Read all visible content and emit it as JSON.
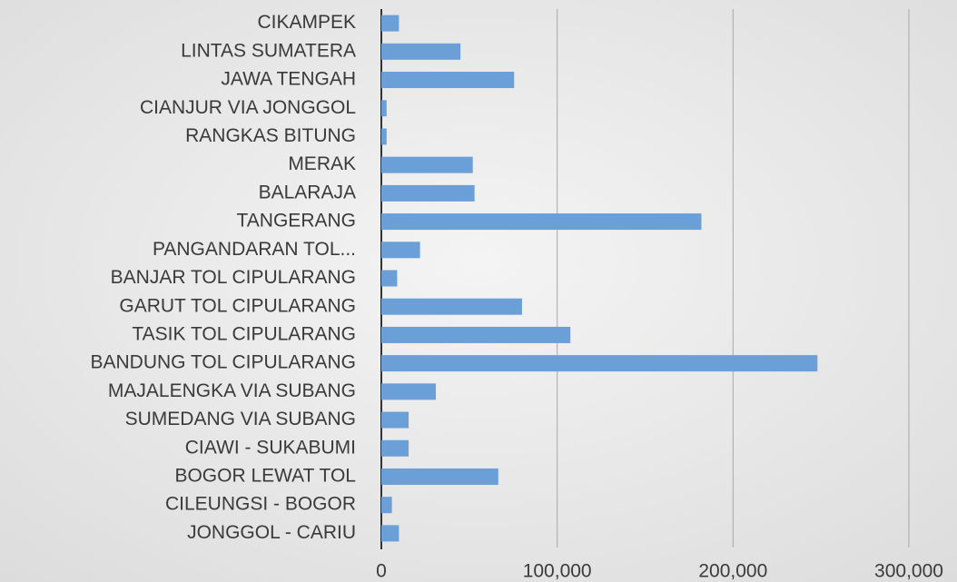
{
  "chart_data": {
    "type": "barh",
    "categories": [
      "CIKAMPEK",
      "LINTAS SUMATERA",
      "JAWA TENGAH",
      "CIANJUR VIA JONGGOL",
      "RANGKAS BITUNG",
      "MERAK",
      "BALARAJA",
      "TANGERANG",
      "PANGANDARAN TOL...",
      "BANJAR TOL CIPULARANG",
      "GARUT TOL CIPULARANG",
      "TASIK TOL CIPULARANG",
      "BANDUNG TOL CIPULARANG",
      "MAJALENGKA VIA SUBANG",
      "SUMEDANG VIA SUBANG",
      "CIAWI - SUKABUMI",
      "BOGOR LEWAT TOL",
      "CILEUNGSI - BOGOR",
      "JONGGOL - CARIU"
    ],
    "values": [
      10000,
      45000,
      75500,
      3000,
      3000,
      52000,
      53000,
      182000,
      22000,
      9000,
      80000,
      107500,
      248000,
      31000,
      15500,
      15500,
      66500,
      6000,
      10000
    ],
    "color": "#6a9fd8",
    "xlim": [
      0,
      300000
    ],
    "xticks": [
      0,
      {
        "value": 100000,
        "label": "100,000"
      },
      {
        "value": 200000,
        "label": "200,000"
      },
      {
        "value": 300000,
        "label": "300,000"
      }
    ],
    "grid": true
  }
}
